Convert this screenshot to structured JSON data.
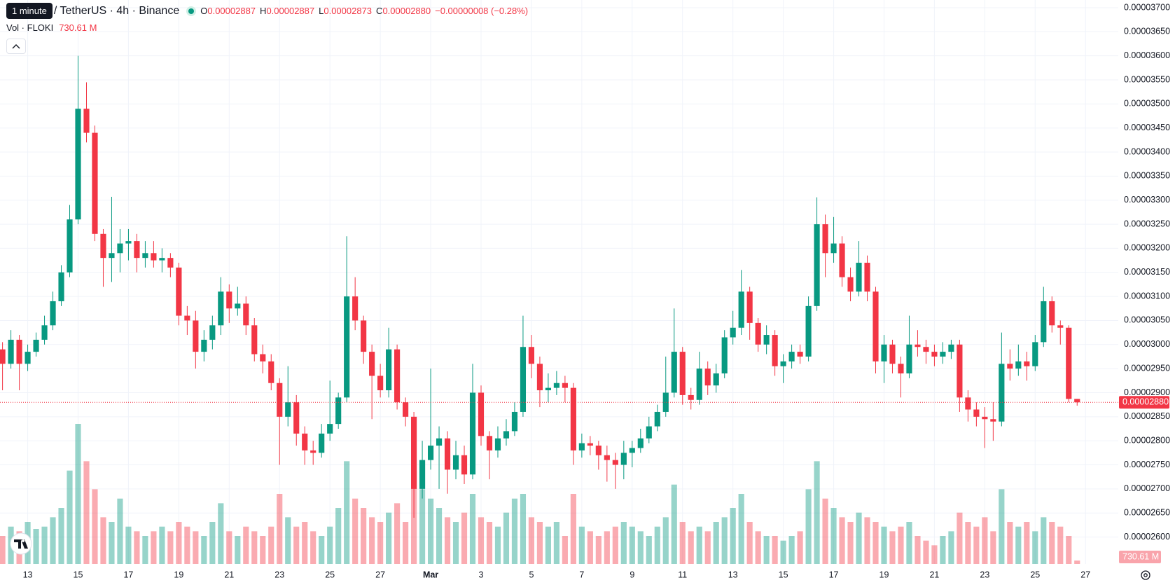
{
  "chart_data": {
    "type": "candlestick",
    "tooltip": "1 minute",
    "legend": {
      "symbol": "/ TetherUS · 4h · Binance",
      "open_label": "O",
      "open": "0.00002887",
      "high_label": "H",
      "high": "0.00002887",
      "low_label": "L",
      "low": "0.00002873",
      "close_label": "C",
      "close": "0.00002880",
      "change": "−0.00000008 (−0.28%)"
    },
    "up_color": "#089981",
    "down_color": "#f23645",
    "grid": true,
    "xlim": [
      -0.3,
      132.9
    ],
    "xticks": [
      {
        "value": 3,
        "label": "13"
      },
      {
        "value": 9,
        "label": "15"
      },
      {
        "value": 15,
        "label": "17"
      },
      {
        "value": 21,
        "label": "19"
      },
      {
        "value": 27,
        "label": "21"
      },
      {
        "value": 33,
        "label": "23"
      },
      {
        "value": 39,
        "label": "25"
      },
      {
        "value": 45,
        "label": "27"
      },
      {
        "value": 51,
        "label": "Mar"
      },
      {
        "value": 57,
        "label": "3"
      },
      {
        "value": 63,
        "label": "5"
      },
      {
        "value": 69,
        "label": "7"
      },
      {
        "value": 75,
        "label": "9"
      },
      {
        "value": 81,
        "label": "11"
      },
      {
        "value": 87,
        "label": "13"
      },
      {
        "value": 93,
        "label": "15"
      },
      {
        "value": 99,
        "label": "17"
      },
      {
        "value": 105,
        "label": "19"
      },
      {
        "value": 111,
        "label": "21"
      },
      {
        "value": 117,
        "label": "23"
      },
      {
        "value": 123,
        "label": "25"
      },
      {
        "value": 129,
        "label": "27"
      }
    ],
    "ylim": [
      2.544e-05,
      3.716e-05
    ],
    "yticks": [
      {
        "value": 2.6e-05,
        "label": "0.00002600"
      },
      {
        "value": 2.65e-05,
        "label": "0.00002650"
      },
      {
        "value": 2.7e-05,
        "label": "0.00002700"
      },
      {
        "value": 2.75e-05,
        "label": "0.00002750"
      },
      {
        "value": 2.8e-05,
        "label": "0.00002800"
      },
      {
        "value": 2.85e-05,
        "label": "0.00002850"
      },
      {
        "value": 2.9e-05,
        "label": "0.00002900"
      },
      {
        "value": 2.95e-05,
        "label": "0.00002950"
      },
      {
        "value": 3e-05,
        "label": "0.00003000"
      },
      {
        "value": 3.05e-05,
        "label": "0.00003050"
      },
      {
        "value": 3.1e-05,
        "label": "0.00003100"
      },
      {
        "value": 3.15e-05,
        "label": "0.00003150"
      },
      {
        "value": 3.2e-05,
        "label": "0.00003200"
      },
      {
        "value": 3.25e-05,
        "label": "0.00003250"
      },
      {
        "value": 3.3e-05,
        "label": "0.00003300"
      },
      {
        "value": 3.35e-05,
        "label": "0.00003350"
      },
      {
        "value": 3.4e-05,
        "label": "0.00003400"
      },
      {
        "value": 3.45e-05,
        "label": "0.00003450"
      },
      {
        "value": 3.5e-05,
        "label": "0.00003500"
      },
      {
        "value": 3.55e-05,
        "label": "0.00003550"
      },
      {
        "value": 3.6e-05,
        "label": "0.00003600"
      },
      {
        "value": 3.65e-05,
        "label": "0.00003650"
      },
      {
        "value": 3.7e-05,
        "label": "0.00003700"
      }
    ],
    "open": [
      2.99e-05,
      2.96e-05,
      3.01e-05,
      2.96e-05,
      2.985e-05,
      3.01e-05,
      3.04e-05,
      3.09e-05,
      3.15e-05,
      3.26e-05,
      3.49e-05,
      3.44e-05,
      3.23e-05,
      3.18e-05,
      3.19e-05,
      3.21e-05,
      3.215e-05,
      3.18e-05,
      3.19e-05,
      3.175e-05,
      3.18e-05,
      3.16e-05,
      3.06e-05,
      3.05e-05,
      2.985e-05,
      3.01e-05,
      3.04e-05,
      3.11e-05,
      3.075e-05,
      3.085e-05,
      3.04e-05,
      2.98e-05,
      2.965e-05,
      2.92e-05,
      2.85e-05,
      2.88e-05,
      2.815e-05,
      2.78e-05,
      2.775e-05,
      2.815e-05,
      2.835e-05,
      2.89e-05,
      3.1e-05,
      3.05e-05,
      2.985e-05,
      2.935e-05,
      2.905e-05,
      2.99e-05,
      2.88e-05,
      2.85e-05,
      2.7e-05,
      2.76e-05,
      2.79e-05,
      2.805e-05,
      2.74e-05,
      2.77e-05,
      2.73e-05,
      2.9e-05,
      2.81e-05,
      2.78e-05,
      2.805e-05,
      2.82e-05,
      2.86e-05,
      2.995e-05,
      2.96e-05,
      2.905e-05,
      2.91e-05,
      2.92e-05,
      2.91e-05,
      2.78e-05,
      2.795e-05,
      2.79e-05,
      2.77e-05,
      2.76e-05,
      2.75e-05,
      2.775e-05,
      2.785e-05,
      2.805e-05,
      2.83e-05,
      2.86e-05,
      2.9e-05,
      2.985e-05,
      2.895e-05,
      2.885e-05,
      2.95e-05,
      2.915e-05,
      2.94e-05,
      3.015e-05,
      3.035e-05,
      3.11e-05,
      3.045e-05,
      3e-05,
      3.02e-05,
      2.955e-05,
      2.965e-05,
      2.985e-05,
      2.975e-05,
      3.08e-05,
      3.25e-05,
      3.19e-05,
      3.21e-05,
      3.14e-05,
      3.11e-05,
      3.17e-05,
      3.11e-05,
      2.965e-05,
      3e-05,
      2.96e-05,
      2.94e-05,
      3e-05,
      2.995e-05,
      2.985e-05,
      2.975e-05,
      2.985e-05,
      3e-05,
      2.89e-05,
      2.865e-05,
      2.85e-05,
      2.845e-05,
      2.84e-05,
      2.96e-05,
      2.95e-05,
      2.965e-05,
      2.955e-05,
      3.005e-05,
      3.09e-05,
      3.04e-05,
      3.035e-05,
      2.887e-05
    ],
    "high": [
      3.005e-05,
      3.03e-05,
      3.02e-05,
      3e-05,
      3.025e-05,
      3.06e-05,
      3.11e-05,
      3.165e-05,
      3.29e-05,
      3.6e-05,
      3.545e-05,
      3.455e-05,
      3.24e-05,
      3.307e-05,
      3.24e-05,
      3.24e-05,
      3.23e-05,
      3.215e-05,
      3.215e-05,
      3.2e-05,
      3.19e-05,
      3.17e-05,
      3.08e-05,
      3.07e-05,
      3.03e-05,
      3.06e-05,
      3.14e-05,
      3.125e-05,
      3.12e-05,
      3.1e-05,
      3.055e-05,
      3e-05,
      2.98e-05,
      2.93e-05,
      2.955e-05,
      2.895e-05,
      2.83e-05,
      2.8e-05,
      2.835e-05,
      2.925e-05,
      2.9e-05,
      3.225e-05,
      3.14e-05,
      3.06e-05,
      3e-05,
      2.96e-05,
      3.035e-05,
      3e-05,
      2.89e-05,
      2.86e-05,
      2.8e-05,
      2.95e-05,
      2.83e-05,
      2.82e-05,
      2.8e-05,
      2.79e-05,
      2.96e-05,
      2.915e-05,
      2.82e-05,
      2.83e-05,
      2.845e-05,
      2.88e-05,
      3.06e-05,
      3.02e-05,
      2.975e-05,
      2.94e-05,
      2.945e-05,
      2.935e-05,
      2.92e-05,
      2.815e-05,
      2.81e-05,
      2.8e-05,
      2.79e-05,
      2.775e-05,
      2.8e-05,
      2.8e-05,
      2.825e-05,
      2.85e-05,
      2.875e-05,
      2.975e-05,
      3.075e-05,
      2.995e-05,
      2.91e-05,
      2.985e-05,
      2.965e-05,
      2.96e-05,
      3.03e-05,
      3.07e-05,
      3.155e-05,
      3.12e-05,
      3.055e-05,
      3.04e-05,
      3.03e-05,
      2.98e-05,
      3e-05,
      3e-05,
      3.1e-05,
      3.306e-05,
      3.27e-05,
      3.265e-05,
      3.225e-05,
      3.16e-05,
      3.215e-05,
      3.185e-05,
      3.12e-05,
      3.02e-05,
      3.01e-05,
      2.975e-05,
      3.06e-05,
      3.03e-05,
      3.01e-05,
      3e-05,
      3.005e-05,
      3.01e-05,
      3.01e-05,
      2.905e-05,
      2.88e-05,
      2.87e-05,
      2.88e-05,
      3.025e-05,
      2.99e-05,
      3e-05,
      2.985e-05,
      3.02e-05,
      3.12e-05,
      3.1e-05,
      3.05e-05,
      3.04e-05,
      2.887e-05
    ],
    "low": [
      2.905e-05,
      2.95e-05,
      2.905e-05,
      2.945e-05,
      2.975e-05,
      3e-05,
      3.03e-05,
      3.08e-05,
      3.14e-05,
      3.25e-05,
      3.42e-05,
      3.215e-05,
      3.12e-05,
      3.13e-05,
      3.15e-05,
      3.175e-05,
      3.15e-05,
      3.16e-05,
      3.16e-05,
      3.15e-05,
      3.14e-05,
      3.04e-05,
      3.02e-05,
      2.95e-05,
      2.965e-05,
      2.99e-05,
      3.02e-05,
      3.045e-05,
      3.06e-05,
      3.02e-05,
      2.965e-05,
      2.94e-05,
      2.905e-05,
      2.75e-05,
      2.83e-05,
      2.79e-05,
      2.75e-05,
      2.75e-05,
      2.765e-05,
      2.8e-05,
      2.825e-05,
      2.88e-05,
      3.03e-05,
      2.96e-05,
      2.845e-05,
      2.89e-05,
      2.89e-05,
      2.865e-05,
      2.83e-05,
      2.64e-05,
      2.68e-05,
      2.74e-05,
      2.7e-05,
      2.69e-05,
      2.72e-05,
      2.71e-05,
      2.72e-05,
      2.79e-05,
      2.72e-05,
      2.765e-05,
      2.79e-05,
      2.81e-05,
      2.85e-05,
      2.93e-05,
      2.87e-05,
      2.88e-05,
      2.895e-05,
      2.88e-05,
      2.75e-05,
      2.765e-05,
      2.77e-05,
      2.74e-05,
      2.715e-05,
      2.7e-05,
      2.72e-05,
      2.745e-05,
      2.775e-05,
      2.795e-05,
      2.82e-05,
      2.85e-05,
      2.89e-05,
      2.875e-05,
      2.865e-05,
      2.875e-05,
      2.895e-05,
      2.9e-05,
      2.93e-05,
      3e-05,
      3.02e-05,
      3.01e-05,
      2.985e-05,
      2.98e-05,
      2.935e-05,
      2.92e-05,
      2.95e-05,
      2.96e-05,
      2.965e-05,
      3.07e-05,
      3.14e-05,
      3.17e-05,
      3.12e-05,
      3.09e-05,
      3.1e-05,
      3.09e-05,
      2.94e-05,
      2.92e-05,
      2.94e-05,
      2.89e-05,
      2.93e-05,
      2.975e-05,
      2.96e-05,
      2.955e-05,
      2.96e-05,
      2.97e-05,
      2.86e-05,
      2.84e-05,
      2.83e-05,
      2.785e-05,
      2.8e-05,
      2.83e-05,
      2.925e-05,
      2.935e-05,
      2.925e-05,
      2.945e-05,
      2.995e-05,
      3.025e-05,
      3e-05,
      2.88e-05,
      2.873e-05
    ],
    "close": [
      2.96e-05,
      3.01e-05,
      2.96e-05,
      2.985e-05,
      3.01e-05,
      3.04e-05,
      3.09e-05,
      3.15e-05,
      3.26e-05,
      3.49e-05,
      3.44e-05,
      3.23e-05,
      3.18e-05,
      3.19e-05,
      3.21e-05,
      3.215e-05,
      3.18e-05,
      3.19e-05,
      3.175e-05,
      3.18e-05,
      3.16e-05,
      3.06e-05,
      3.05e-05,
      2.985e-05,
      3.01e-05,
      3.04e-05,
      3.11e-05,
      3.075e-05,
      3.085e-05,
      3.04e-05,
      2.98e-05,
      2.965e-05,
      2.92e-05,
      2.85e-05,
      2.88e-05,
      2.815e-05,
      2.78e-05,
      2.775e-05,
      2.815e-05,
      2.835e-05,
      2.89e-05,
      3.1e-05,
      3.05e-05,
      2.985e-05,
      2.935e-05,
      2.905e-05,
      2.99e-05,
      2.88e-05,
      2.85e-05,
      2.7e-05,
      2.76e-05,
      2.79e-05,
      2.805e-05,
      2.74e-05,
      2.77e-05,
      2.73e-05,
      2.9e-05,
      2.81e-05,
      2.78e-05,
      2.805e-05,
      2.82e-05,
      2.86e-05,
      2.995e-05,
      2.96e-05,
      2.905e-05,
      2.91e-05,
      2.92e-05,
      2.91e-05,
      2.78e-05,
      2.795e-05,
      2.79e-05,
      2.77e-05,
      2.76e-05,
      2.75e-05,
      2.775e-05,
      2.785e-05,
      2.805e-05,
      2.83e-05,
      2.86e-05,
      2.9e-05,
      2.985e-05,
      2.895e-05,
      2.885e-05,
      2.95e-05,
      2.915e-05,
      2.94e-05,
      3.015e-05,
      3.035e-05,
      3.11e-05,
      3.045e-05,
      3e-05,
      3.02e-05,
      2.955e-05,
      2.965e-05,
      2.985e-05,
      2.975e-05,
      3.08e-05,
      3.25e-05,
      3.19e-05,
      3.21e-05,
      3.14e-05,
      3.11e-05,
      3.17e-05,
      3.11e-05,
      2.965e-05,
      3e-05,
      2.96e-05,
      2.94e-05,
      3e-05,
      2.995e-05,
      2.985e-05,
      2.975e-05,
      2.985e-05,
      3e-05,
      2.89e-05,
      2.865e-05,
      2.85e-05,
      2.845e-05,
      2.84e-05,
      2.96e-05,
      2.95e-05,
      2.965e-05,
      2.955e-05,
      3.005e-05,
      3.09e-05,
      3.04e-05,
      3.035e-05,
      2.887e-05,
      2.88e-05
    ],
    "last_label": "0.00002880",
    "volume": {
      "name": "Vol · FLOKI",
      "last_label": "730.61 M",
      "values": [
        6000,
        8000,
        7000,
        9000,
        7500,
        8000,
        10000,
        12000,
        20000,
        30000,
        22000,
        16000,
        10000,
        9000,
        14000,
        8000,
        7000,
        6000,
        7000,
        8000,
        7000,
        9000,
        8000,
        7000,
        6000,
        9000,
        13000,
        7000,
        6000,
        8000,
        7000,
        6000,
        8000,
        15000,
        10000,
        8000,
        9000,
        7000,
        6000,
        8000,
        12000,
        22000,
        14000,
        12000,
        10000,
        9000,
        11000,
        13000,
        9000,
        20000,
        16000,
        14000,
        12000,
        10000,
        9000,
        11000,
        15000,
        10000,
        9000,
        8000,
        11000,
        14000,
        15000,
        10000,
        9000,
        8000,
        9000,
        6000,
        15000,
        8000,
        7000,
        6000,
        7000,
        8000,
        9000,
        8000,
        7000,
        6000,
        8000,
        10000,
        17000,
        9000,
        7000,
        8000,
        7000,
        9000,
        10000,
        12000,
        15000,
        9000,
        7000,
        6000,
        6000,
        5000,
        6000,
        7000,
        16000,
        22000,
        14000,
        12000,
        10000,
        9000,
        11000,
        10000,
        9000,
        8000,
        7000,
        8000,
        9000,
        6000,
        5000,
        4000,
        6000,
        7000,
        11000,
        9000,
        8000,
        10000,
        7000,
        16000,
        9000,
        8000,
        9000,
        7000,
        10000,
        9000,
        8000,
        6000,
        730.61
      ]
    }
  }
}
